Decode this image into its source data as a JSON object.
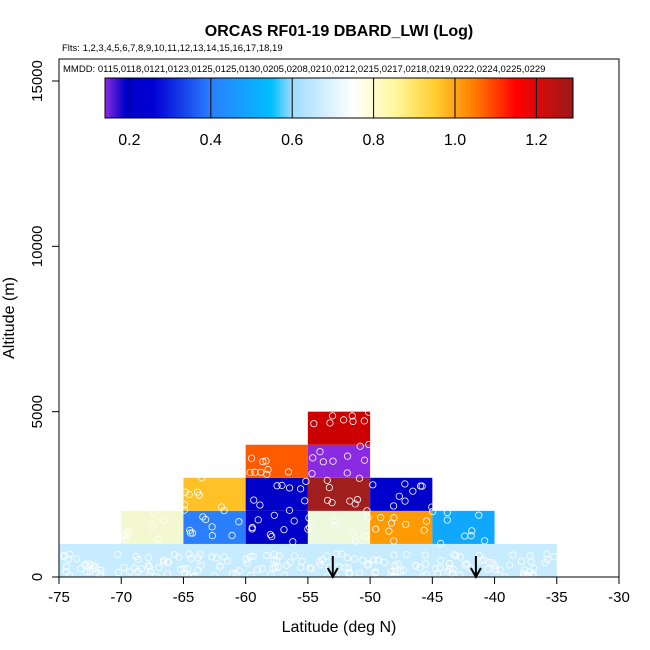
{
  "chart_data": {
    "type": "heatmap",
    "title": "ORCAS RF01-19 DBARD_LWI (Log)",
    "flights_line": "Flts: 1,2,3,4,5,6,7,8,9,10,11,12,13,14,15,16,17,18,19",
    "mmdd_line": "MMDD: 0115,0118,0121,0123,0125,0125,0130,0205,0208,0210,0212,0215,0217,0218,0219,0222,0224,0225,0229",
    "xlabel": "Latitude (deg N)",
    "ylabel": "Altitude (m)",
    "xlim": [
      -75,
      -30
    ],
    "ylim": [
      0,
      16000
    ],
    "x_ticks": [
      -75,
      -70,
      -65,
      -60,
      -55,
      -50,
      -45,
      -40,
      -35,
      -30
    ],
    "y_ticks": [
      0,
      5000,
      10000,
      15000
    ],
    "colorbar": {
      "range": [
        0.14,
        1.29
      ],
      "ticks": [
        0.2,
        0.4,
        0.6,
        0.8,
        1.0,
        1.2
      ],
      "tick_labels": [
        "0.2",
        "0.4",
        "0.6",
        "0.8",
        "1.0",
        "1.2"
      ],
      "stops": [
        {
          "v": 0.14,
          "c": "#8a2be2"
        },
        {
          "v": 0.19,
          "c": "#0000c8"
        },
        {
          "v": 0.26,
          "c": "#0000d4"
        },
        {
          "v": 0.4,
          "c": "#2a7fff"
        },
        {
          "v": 0.55,
          "c": "#00bfff"
        },
        {
          "v": 0.6,
          "c": "#9fdcff"
        },
        {
          "v": 0.75,
          "c": "#ffffff"
        },
        {
          "v": 0.85,
          "c": "#fff8a0"
        },
        {
          "v": 0.95,
          "c": "#ffcf30"
        },
        {
          "v": 1.05,
          "c": "#ff7a00"
        },
        {
          "v": 1.15,
          "c": "#ff0000"
        },
        {
          "v": 1.29,
          "c": "#9a1a1a"
        }
      ]
    },
    "cells": [
      {
        "lat0": -75,
        "lat1": -70,
        "alt0": 0,
        "alt1": 1000,
        "color": "#c8ecff"
      },
      {
        "lat0": -70,
        "lat1": -65,
        "alt0": 0,
        "alt1": 1000,
        "color": "#c8ecff"
      },
      {
        "lat0": -65,
        "lat1": -60,
        "alt0": 0,
        "alt1": 1000,
        "color": "#c8ecff"
      },
      {
        "lat0": -60,
        "lat1": -55,
        "alt0": 0,
        "alt1": 1000,
        "color": "#c8ecff"
      },
      {
        "lat0": -55,
        "lat1": -50,
        "alt0": 0,
        "alt1": 1000,
        "color": "#c8ecff"
      },
      {
        "lat0": -50,
        "lat1": -45,
        "alt0": 0,
        "alt1": 1000,
        "color": "#c8ecff"
      },
      {
        "lat0": -45,
        "lat1": -40,
        "alt0": 0,
        "alt1": 1000,
        "color": "#c8ecff"
      },
      {
        "lat0": -40,
        "lat1": -35,
        "alt0": 0,
        "alt1": 1000,
        "color": "#c8ecff"
      },
      {
        "lat0": -70,
        "lat1": -65,
        "alt0": 1000,
        "alt1": 2000,
        "color": "#f4f8d0"
      },
      {
        "lat0": -65,
        "lat1": -60,
        "alt0": 1000,
        "alt1": 2000,
        "color": "#2a7fff"
      },
      {
        "lat0": -60,
        "lat1": -55,
        "alt0": 1000,
        "alt1": 2000,
        "color": "#0000c8"
      },
      {
        "lat0": -55,
        "lat1": -50,
        "alt0": 1000,
        "alt1": 2000,
        "color": "#eef8dc"
      },
      {
        "lat0": -50,
        "lat1": -45,
        "alt0": 1000,
        "alt1": 2000,
        "color": "#ff9a00"
      },
      {
        "lat0": -45,
        "lat1": -40,
        "alt0": 1000,
        "alt1": 2000,
        "color": "#10a8ff"
      },
      {
        "lat0": -65,
        "lat1": -60,
        "alt0": 2000,
        "alt1": 3000,
        "color": "#ffc125"
      },
      {
        "lat0": -60,
        "lat1": -55,
        "alt0": 2000,
        "alt1": 3000,
        "color": "#0000c8"
      },
      {
        "lat0": -55,
        "lat1": -50,
        "alt0": 2000,
        "alt1": 3000,
        "color": "#a01e1e"
      },
      {
        "lat0": -50,
        "lat1": -45,
        "alt0": 2000,
        "alt1": 3000,
        "color": "#0000cc"
      },
      {
        "lat0": -60,
        "lat1": -55,
        "alt0": 3000,
        "alt1": 4000,
        "color": "#ff5a00"
      },
      {
        "lat0": -55,
        "lat1": -50,
        "alt0": 3000,
        "alt1": 4000,
        "color": "#8a2be2"
      },
      {
        "lat0": -55,
        "lat1": -50,
        "alt0": 4000,
        "alt1": 5000,
        "color": "#cc0000"
      }
    ],
    "arrows": [
      {
        "lat": -53
      },
      {
        "lat": -41.5
      }
    ],
    "grid": false,
    "legend": "colorbar top"
  }
}
